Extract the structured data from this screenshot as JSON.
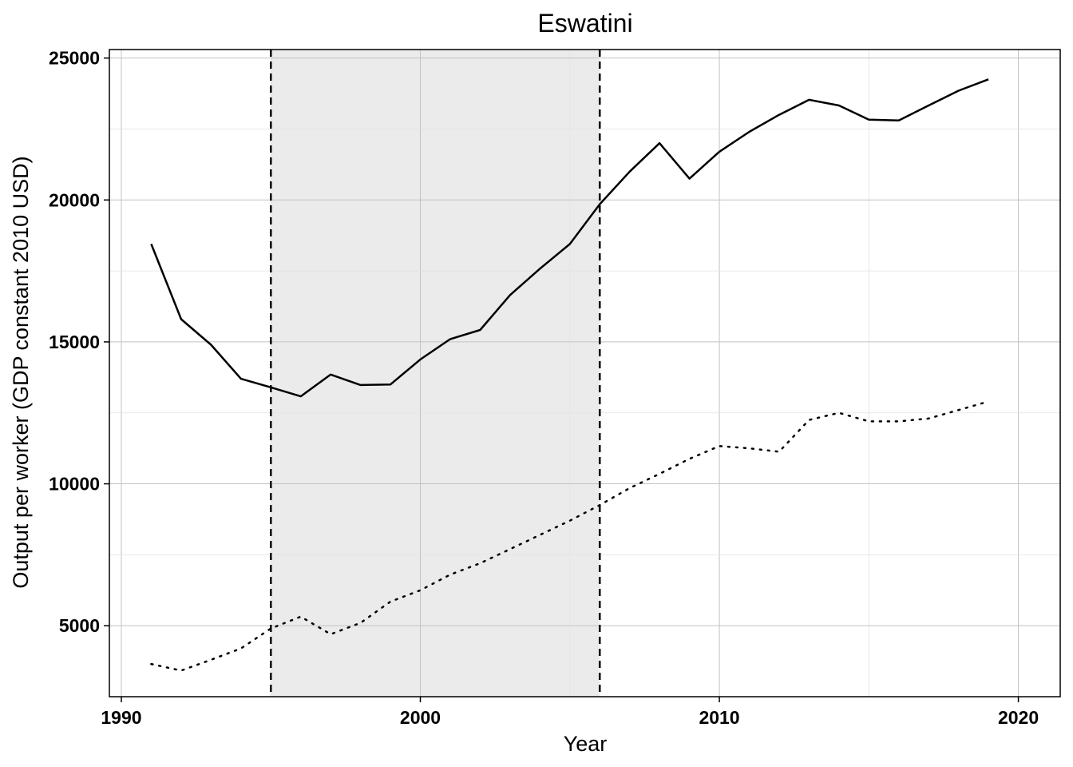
{
  "chart_data": {
    "type": "line",
    "title": "Eswatini",
    "xlabel": "Year",
    "ylabel": "Output per worker (GDP constant 2010 USD)",
    "xlim": [
      1989.6,
      2021.4
    ],
    "ylim": [
      2500,
      25300
    ],
    "xticks": [
      1990,
      2000,
      2010,
      2020
    ],
    "yticks": [
      5000,
      10000,
      15000,
      20000,
      25000
    ],
    "grid": true,
    "shaded_period": {
      "start": 1995,
      "end": 2006
    },
    "series": [
      {
        "style": "solid",
        "x": [
          1991,
          1992,
          1993,
          1994,
          1995,
          1996,
          1997,
          1998,
          1999,
          2000,
          2001,
          2002,
          2003,
          2004,
          2005,
          2006,
          2007,
          2008,
          2009,
          2010,
          2011,
          2012,
          2013,
          2014,
          2015,
          2016,
          2017,
          2018,
          2019
        ],
        "y": [
          18450,
          15800,
          14900,
          13700,
          13400,
          13080,
          13850,
          13480,
          13500,
          14380,
          15100,
          15420,
          16650,
          17580,
          18450,
          19850,
          21000,
          22000,
          20750,
          21700,
          22400,
          23000,
          23530,
          23330,
          22830,
          22800,
          23330,
          23850,
          24250
        ]
      },
      {
        "style": "dotted",
        "x": [
          1991,
          1992,
          1993,
          1994,
          1995,
          1996,
          1997,
          1998,
          1999,
          2000,
          2001,
          2002,
          2003,
          2004,
          2005,
          2006,
          2007,
          2008,
          2009,
          2010,
          2011,
          2012,
          2013,
          2014,
          2015,
          2016,
          2017,
          2018,
          2019
        ],
        "y": [
          3650,
          3420,
          3800,
          4200,
          4900,
          5320,
          4700,
          5100,
          5850,
          6250,
          6800,
          7200,
          7700,
          8200,
          8700,
          9250,
          9850,
          10350,
          10880,
          11330,
          11250,
          11130,
          12250,
          12500,
          12200,
          12200,
          12300,
          12600,
          12900
        ]
      }
    ]
  }
}
